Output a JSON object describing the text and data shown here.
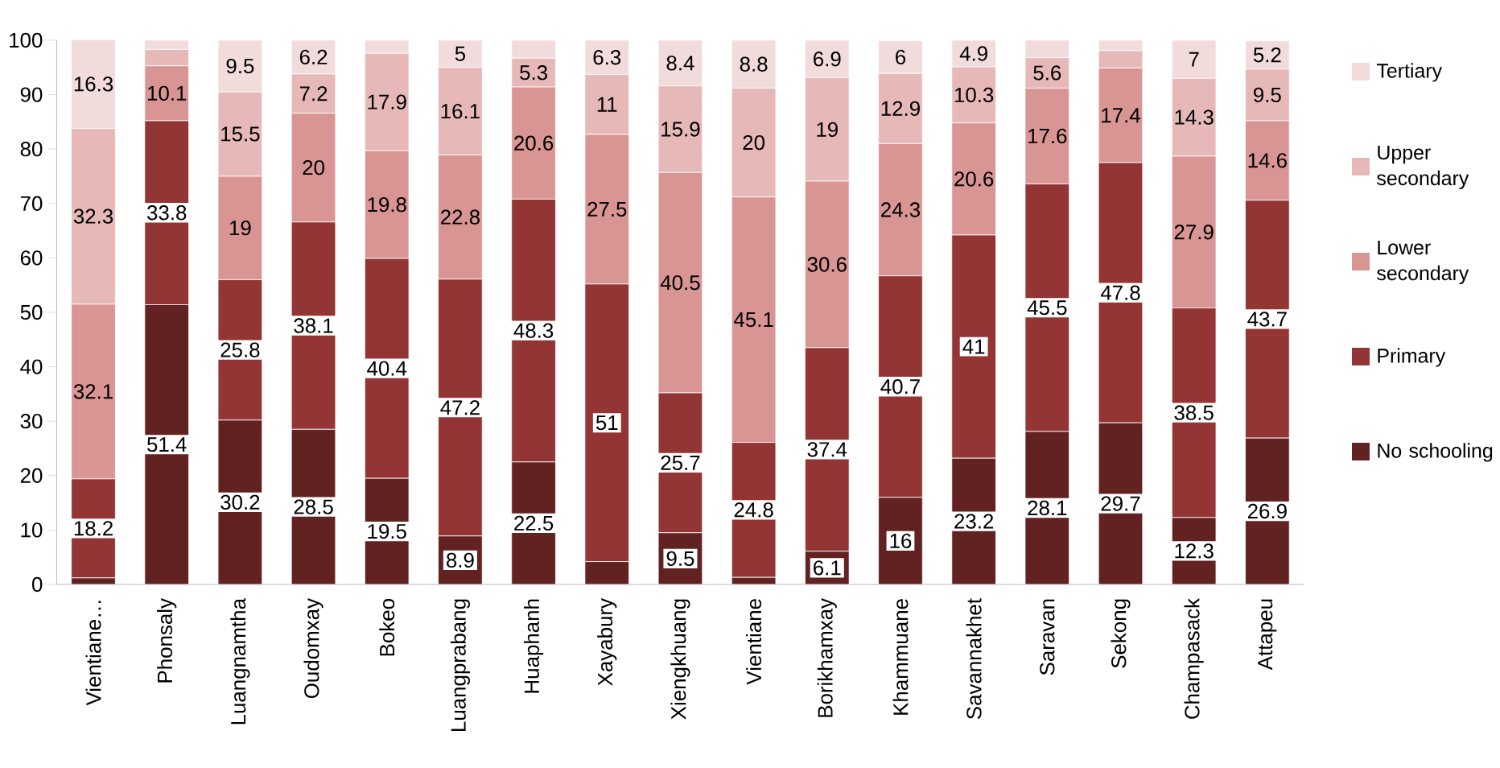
{
  "chart_data": {
    "type": "bar",
    "stacked": true,
    "categories": [
      "Vientiane…",
      "Phonsaly",
      "Luangnamtha",
      "Oudomxay",
      "Bokeo",
      "Luangprabang",
      "Huaphanh",
      "Xayabury",
      "Xiengkhuang",
      "Vientiane",
      "Borikhamxay",
      "Khammuane",
      "Savannakhet",
      "Saravan",
      "Sekong",
      "Champasack",
      "Attapeu"
    ],
    "series": [
      {
        "name": "No schooling",
        "color": "#632222",
        "values": [
          1.2,
          51.4,
          30.2,
          28.5,
          19.5,
          8.9,
          22.5,
          4.2,
          9.5,
          1.3,
          6.1,
          16,
          23.2,
          28.1,
          29.7,
          12.3,
          26.9
        ],
        "value_labels": [
          null,
          "51.4",
          "30.2",
          "28.5",
          "19.5",
          "8.9",
          "22.5",
          null,
          "9.5",
          null,
          "6.1",
          "16",
          "23.2",
          "28.1",
          "29.7",
          "12.3",
          "26.9"
        ]
      },
      {
        "name": "Primary",
        "color": "#943535",
        "values": [
          18.2,
          33.8,
          25.8,
          38.1,
          40.4,
          47.2,
          48.3,
          51,
          25.7,
          24.8,
          37.4,
          40.7,
          41,
          45.5,
          47.8,
          38.5,
          43.7
        ],
        "value_labels": [
          "18.2",
          "33.8",
          "25.8",
          "38.1",
          "40.4",
          "47.2",
          "48.3",
          "51",
          "25.7",
          "24.8",
          "37.4",
          "40.7",
          "41",
          "45.5",
          "47.8",
          "38.5",
          "43.7"
        ]
      },
      {
        "name": "Lower secondary",
        "color": "#d99594",
        "values": [
          32.1,
          10.1,
          19,
          20,
          19.8,
          22.8,
          20.6,
          27.5,
          40.5,
          45.1,
          30.6,
          24.3,
          20.6,
          17.6,
          17.4,
          27.9,
          14.6
        ],
        "value_labels": [
          "32.1",
          "10.1",
          "19",
          "20",
          "19.8",
          "22.8",
          "20.6",
          "27.5",
          "40.5",
          "45.1",
          "30.6",
          "24.3",
          "20.6",
          "17.6",
          "17.4",
          "27.9",
          "14.6"
        ]
      },
      {
        "name": "Upper secondary",
        "color": "#e6b9b8",
        "values": [
          32.3,
          3,
          15.5,
          7.2,
          17.9,
          16.1,
          5.3,
          11,
          15.9,
          20,
          19,
          12.9,
          10.3,
          5.6,
          3.2,
          14.3,
          9.5
        ],
        "value_labels": [
          "32.3",
          null,
          "15.5",
          "7.2",
          "17.9",
          "16.1",
          "5.3",
          "11",
          "15.9",
          "20",
          "19",
          "12.9",
          "10.3",
          "5.6",
          null,
          "14.3",
          "9.5"
        ]
      },
      {
        "name": "Tertiary",
        "color": "#f2dcdb",
        "values": [
          16.3,
          1.7,
          9.5,
          6.2,
          2.4,
          5,
          3.3,
          6.3,
          8.4,
          8.8,
          6.9,
          6,
          4.9,
          3.2,
          1.9,
          7,
          5.2
        ],
        "value_labels": [
          "16.3",
          null,
          "9.5",
          "6.2",
          null,
          "5",
          null,
          "6.3",
          "8.4",
          "8.8",
          "6.9",
          "6",
          "4.9",
          null,
          null,
          "7",
          "5.2"
        ]
      }
    ],
    "ylim": [
      0,
      100
    ],
    "yticks": [
      0,
      10,
      20,
      30,
      40,
      50,
      60,
      70,
      80,
      90,
      100
    ],
    "grid": false,
    "legend": "right"
  }
}
